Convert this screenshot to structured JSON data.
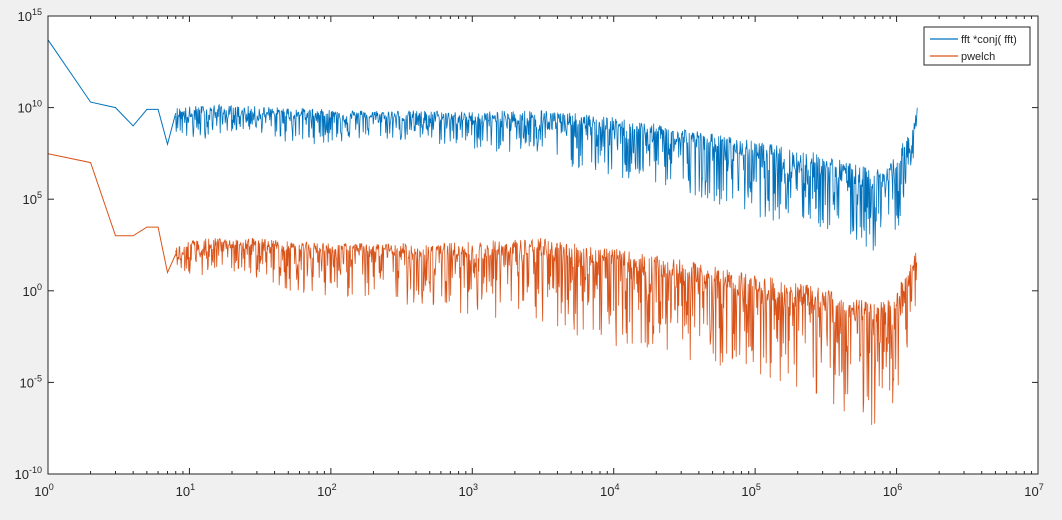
{
  "chart_data": {
    "type": "line",
    "title": "",
    "xlabel": "",
    "ylabel": "",
    "x_scale": "log",
    "y_scale": "log",
    "xlim": [
      1,
      10000000
    ],
    "ylim": [
      1e-10,
      1000000000000000.0
    ],
    "grid": false,
    "legend_position": "top-right",
    "x_ticks": [
      {
        "value": 1,
        "base": "10",
        "exp": "0"
      },
      {
        "value": 10,
        "base": "10",
        "exp": "1"
      },
      {
        "value": 100,
        "base": "10",
        "exp": "2"
      },
      {
        "value": 1000,
        "base": "10",
        "exp": "3"
      },
      {
        "value": 10000,
        "base": "10",
        "exp": "4"
      },
      {
        "value": 100000,
        "base": "10",
        "exp": "5"
      },
      {
        "value": 1000000,
        "base": "10",
        "exp": "6"
      },
      {
        "value": 10000000,
        "base": "10",
        "exp": "7"
      }
    ],
    "y_ticks": [
      {
        "value": 1e-10,
        "base": "10",
        "exp": "-10"
      },
      {
        "value": 1e-05,
        "base": "10",
        "exp": "-5"
      },
      {
        "value": 1,
        "base": "10",
        "exp": "0"
      },
      {
        "value": 100000.0,
        "base": "10",
        "exp": "5"
      },
      {
        "value": 10000000000.0,
        "base": "10",
        "exp": "10"
      },
      {
        "value": 1000000000000000.0,
        "base": "10",
        "exp": "15"
      }
    ],
    "series": [
      {
        "name": "fft *conj( fft)",
        "color": "#0072bd",
        "x": [
          1,
          2,
          3,
          4,
          5,
          6,
          7,
          8,
          10,
          15,
          20,
          30,
          50,
          100,
          200,
          500,
          1000,
          3000,
          10000,
          30000,
          100000,
          300000,
          700000,
          1000000,
          1300000,
          1400000
        ],
        "y": [
          50000000000000.0,
          20000000000.0,
          10000000000.0,
          1000000000.0,
          8000000000.0,
          8000000000.0,
          100000000.0,
          5000000000.0,
          3000000000.0,
          5000000000.0,
          4000000000.0,
          4000000000.0,
          4000000000.0,
          3500000000.0,
          3000000000.0,
          2500000000.0,
          2000000000.0,
          2000000000.0,
          600000000.0,
          150000000.0,
          25000000.0,
          3000000.0,
          500000.0,
          1500000.0,
          80000000.0,
          10000000000.0
        ],
        "y_min": [
          50000000000000.0,
          20000000000.0,
          10000000000.0,
          1000000000.0,
          8000000000.0,
          8000000000.0,
          100000000.0,
          500000000.0,
          100000000.0,
          300000000.0,
          500000000.0,
          500000000.0,
          100000000.0,
          100000000.0,
          200000000.0,
          100000000.0,
          50000000.0,
          20000000.0,
          1000000.0,
          300000.0,
          10000.0,
          2000.0,
          100.0,
          2000.0,
          100000.0,
          10000000000.0
        ],
        "y_max": [
          50000000000000.0,
          20000000000.0,
          10000000000.0,
          1000000000.0,
          8000000000.0,
          8000000000.0,
          100000000.0,
          10000000000.0,
          12000000000.0,
          15000000000.0,
          13000000000.0,
          12000000000.0,
          10000000000.0,
          8000000000.0,
          7000000000.0,
          7000000000.0,
          6000000000.0,
          8000000000.0,
          3000000000.0,
          800000000.0,
          150000000.0,
          30000000.0,
          4000000.0,
          30000000.0,
          1000000000.0,
          10000000000.0
        ]
      },
      {
        "name": "pwelch",
        "color": "#d95319",
        "x": [
          1,
          2,
          3,
          4,
          5,
          6,
          7,
          8,
          10,
          15,
          20,
          30,
          50,
          100,
          200,
          500,
          1000,
          3000,
          10000,
          30000,
          100000,
          300000,
          700000,
          1000000,
          1300000,
          1400000
        ],
        "y": [
          30000000.0,
          10000000.0,
          1000.0,
          1000.0,
          3000.0,
          3000.0,
          10.0,
          100.0,
          50.0,
          300.0,
          200.0,
          300.0,
          200.0,
          150.0,
          120.0,
          100.0,
          80.0,
          100.0,
          30.0,
          5.0,
          1.0,
          0.1,
          0.02,
          0.1,
          10.0,
          20.0
        ],
        "y_min": [
          30000000.0,
          10000000.0,
          1000.0,
          1000.0,
          3000.0,
          3000.0,
          10.0,
          30.0,
          5.0,
          10.0,
          10.0,
          5.0,
          1.0,
          0.5,
          0.3,
          0.1,
          0.05,
          0.01,
          0.001,
          0.0002,
          3e-05,
          1e-06,
          3e-08,
          1e-06,
          0.0001,
          0.001
        ],
        "y_max": [
          30000000.0,
          10000000.0,
          1000.0,
          1000.0,
          3000.0,
          3000.0,
          10.0,
          300.0,
          600.0,
          800.0,
          600.0,
          800.0,
          500.0,
          400.0,
          400.0,
          400.0,
          500.0,
          800.0,
          200.0,
          50.0,
          8.0,
          1.5,
          0.2,
          1.0,
          50.0,
          300.0
        ]
      }
    ]
  }
}
